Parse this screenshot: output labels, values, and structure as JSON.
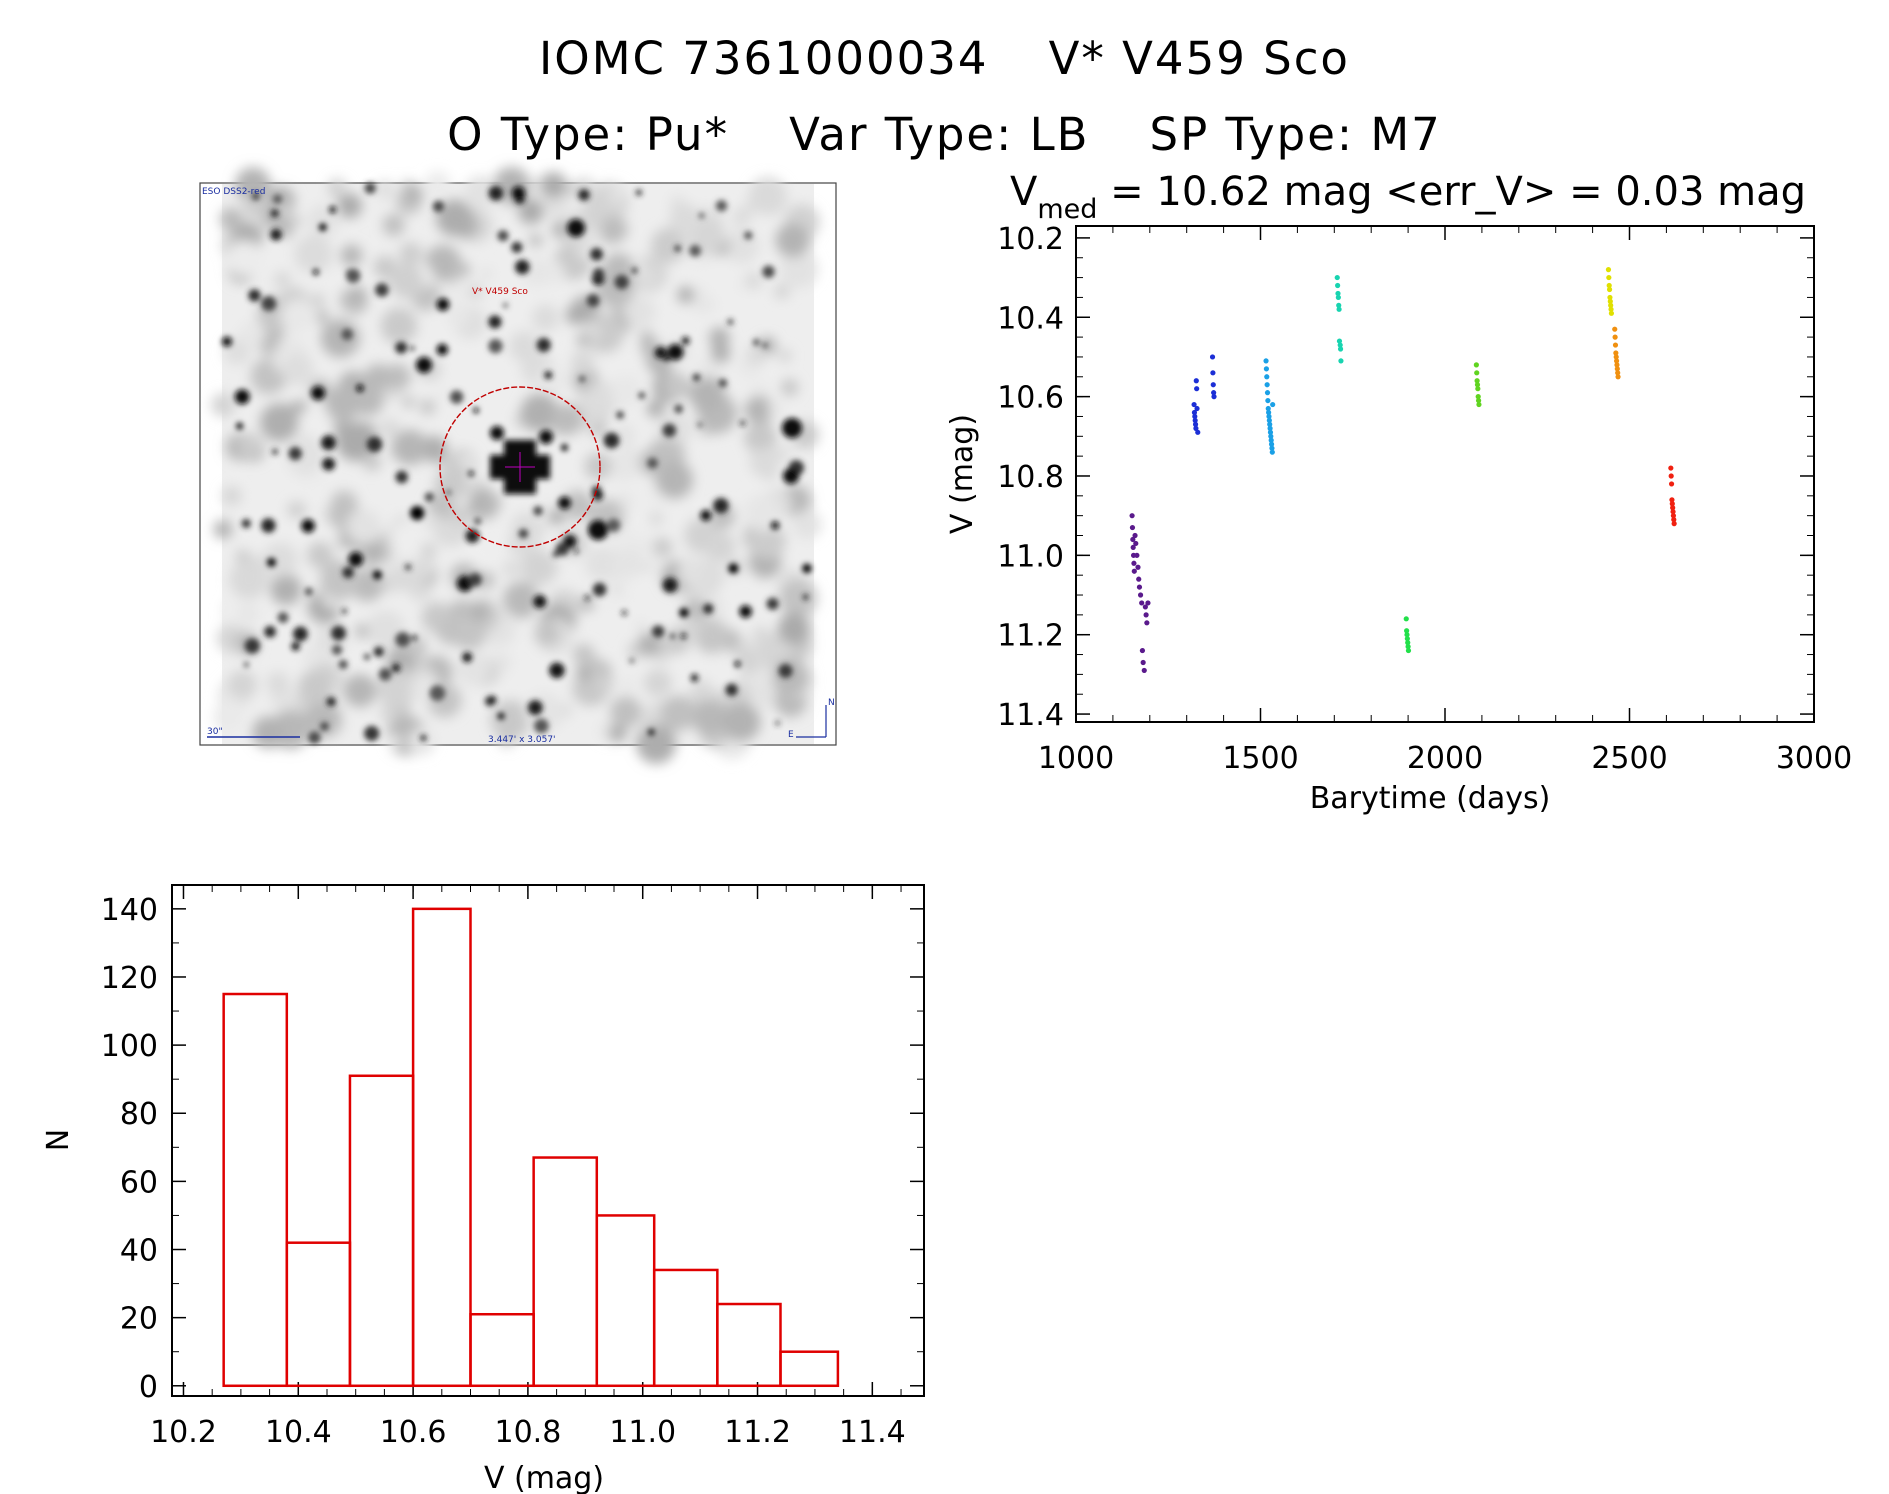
{
  "header": {
    "line1_id": "IOMC 7361000034",
    "line1_name": "V* V459 Sco",
    "otype": "O Type: Pu*",
    "vartype": "Var Type: LB",
    "sptype": "SP Type: M7"
  },
  "image_panel": {
    "survey_label": "ESO DSS2-red",
    "target_label": "V* V459 Sco",
    "scale_label": "30\"",
    "size_label": "3.447' x 3.057'",
    "north_label": "N",
    "east_label": "E",
    "marker_color": "#c00000"
  },
  "lightcurve_title": {
    "v": "V",
    "sub": "med",
    "text": " = 10.62 mag <err_V> = 0.03 mag"
  },
  "chart_data": [
    {
      "type": "scatter",
      "xlabel": "Barytime (days)",
      "ylabel": "V (mag)",
      "xlim": [
        1000,
        3000
      ],
      "ylim": [
        11.42,
        10.17
      ],
      "y_inverted": true,
      "xticks": [
        "1000",
        "1500",
        "2000",
        "2500",
        "3000"
      ],
      "yticks": [
        "10.2",
        "10.4",
        "10.6",
        "10.8",
        "11.0",
        "11.2",
        "11.4"
      ],
      "series": [
        {
          "color": "#5a1a8c",
          "x": [
            1152,
            1153,
            1154,
            1155,
            1156,
            1157,
            1158,
            1160,
            1162,
            1165,
            1168,
            1170,
            1172,
            1175,
            1178,
            1180,
            1182,
            1185,
            1188,
            1190,
            1192,
            1195
          ],
          "y": [
            10.9,
            10.93,
            10.96,
            10.98,
            11.0,
            11.02,
            11.04,
            10.95,
            10.97,
            11.0,
            11.03,
            11.06,
            11.08,
            11.1,
            11.12,
            11.24,
            11.27,
            11.29,
            11.13,
            11.15,
            11.17,
            11.12
          ]
        },
        {
          "color": "#1c2fd6",
          "x": [
            1320,
            1321,
            1322,
            1323,
            1324,
            1325,
            1326,
            1327,
            1328,
            1330,
            1370,
            1371,
            1372,
            1373,
            1374
          ],
          "y": [
            10.62,
            10.64,
            10.65,
            10.66,
            10.67,
            10.68,
            10.56,
            10.58,
            10.63,
            10.69,
            10.5,
            10.54,
            10.57,
            10.59,
            10.6
          ]
        },
        {
          "color": "#1aa0e6",
          "x": [
            1515,
            1516,
            1517,
            1518,
            1519,
            1520,
            1521,
            1522,
            1523,
            1524,
            1525,
            1526,
            1527,
            1528,
            1529,
            1530,
            1531,
            1532,
            1533
          ],
          "y": [
            10.51,
            10.53,
            10.55,
            10.57,
            10.59,
            10.61,
            10.63,
            10.64,
            10.65,
            10.66,
            10.67,
            10.68,
            10.69,
            10.7,
            10.71,
            10.72,
            10.73,
            10.74,
            10.62
          ]
        },
        {
          "color": "#18d4b0",
          "x": [
            1708,
            1709,
            1710,
            1711,
            1712,
            1713,
            1714,
            1716,
            1717,
            1718
          ],
          "y": [
            10.3,
            10.32,
            10.34,
            10.35,
            10.37,
            10.38,
            10.46,
            10.47,
            10.48,
            10.51
          ]
        },
        {
          "color": "#22e04a",
          "x": [
            1895,
            1896,
            1897,
            1898,
            1899,
            1900,
            1901
          ],
          "y": [
            11.16,
            11.19,
            11.2,
            11.21,
            11.22,
            11.23,
            11.24
          ]
        },
        {
          "color": "#60d420",
          "x": [
            2085,
            2086,
            2087,
            2088,
            2089,
            2090,
            2091,
            2092
          ],
          "y": [
            10.52,
            10.54,
            10.56,
            10.57,
            10.58,
            10.6,
            10.61,
            10.62
          ]
        },
        {
          "color": "#e0e000",
          "x": [
            2443,
            2444,
            2445,
            2446,
            2447,
            2448,
            2449,
            2450,
            2451
          ],
          "y": [
            10.28,
            10.3,
            10.32,
            10.33,
            10.35,
            10.36,
            10.37,
            10.38,
            10.39
          ]
        },
        {
          "color": "#f09010",
          "x": [
            2460,
            2461,
            2462,
            2463,
            2464,
            2465,
            2466,
            2467,
            2468,
            2469
          ],
          "y": [
            10.43,
            10.45,
            10.47,
            10.49,
            10.5,
            10.51,
            10.52,
            10.53,
            10.54,
            10.55
          ]
        },
        {
          "color": "#f02010",
          "x": [
            2612,
            2613,
            2614,
            2615,
            2616,
            2617,
            2618,
            2619,
            2620,
            2621
          ],
          "y": [
            10.78,
            10.8,
            10.82,
            10.86,
            10.87,
            10.88,
            10.89,
            10.9,
            10.91,
            10.92
          ]
        }
      ]
    },
    {
      "type": "bar",
      "xlabel": "V (mag)",
      "ylabel": "N",
      "xlim": [
        10.18,
        11.49
      ],
      "ylim": [
        -3,
        147
      ],
      "xticks": [
        "10.2",
        "10.4",
        "10.6",
        "10.8",
        "11.0",
        "11.2",
        "11.4"
      ],
      "yticks": [
        "0",
        "20",
        "40",
        "60",
        "80",
        "100",
        "120",
        "140"
      ],
      "bin_edges": [
        10.27,
        10.38,
        10.49,
        10.6,
        10.7,
        10.81,
        10.92,
        11.02,
        11.13,
        11.24,
        11.34
      ],
      "values": [
        115,
        42,
        91,
        140,
        21,
        67,
        50,
        34,
        24,
        10
      ],
      "color": "#e00000"
    }
  ]
}
